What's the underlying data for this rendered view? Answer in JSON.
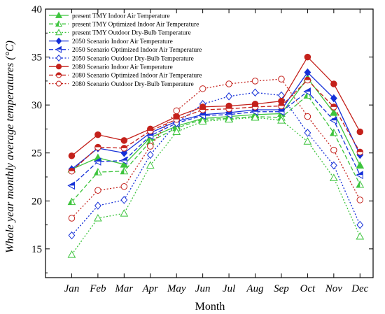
{
  "chart_data": {
    "type": "line",
    "xlabel": "Month",
    "ylabel": "Whole year monthly average temperatures (°C)",
    "categories": [
      "Jan",
      "Feb",
      "Mar",
      "Apr",
      "May",
      "Jun",
      "Jul",
      "Aug",
      "Sep",
      "Oct",
      "Nov",
      "Dec"
    ],
    "ylim": [
      12,
      40
    ],
    "yticks": [
      15,
      20,
      25,
      30,
      35,
      40
    ],
    "grid": false,
    "legend_position": "top-left",
    "series": [
      {
        "name": "present TMY Indoor Air Temperature",
        "color": "#3dc43d",
        "marker": "triangle",
        "fill": true,
        "dash": "solid",
        "values": [
          23.3,
          24.5,
          23.8,
          26.6,
          27.8,
          28.6,
          28.8,
          29.0,
          29.1,
          32.8,
          29.2,
          23.7
        ]
      },
      {
        "name": "present TMY Optimized Indoor Air Temperature",
        "color": "#3dc43d",
        "marker": "triangle-half",
        "fill": true,
        "dash": "dashed",
        "values": [
          19.9,
          23.0,
          23.1,
          26.2,
          27.6,
          28.5,
          28.6,
          28.8,
          28.7,
          31.0,
          27.1,
          21.7
        ]
      },
      {
        "name": "present TMY Outdoor Dry-Bulb Temperature",
        "color": "#3dc43d",
        "marker": "triangle",
        "fill": false,
        "dash": "dotted",
        "values": [
          14.4,
          18.2,
          18.7,
          23.7,
          27.2,
          28.3,
          28.5,
          28.7,
          28.4,
          26.2,
          22.4,
          16.3
        ]
      },
      {
        "name": "2050 Scenario Indoor Air Temperature",
        "color": "#1530d8",
        "marker": "diamond",
        "fill": true,
        "dash": "solid",
        "values": [
          23.3,
          25.5,
          25.0,
          27.1,
          28.3,
          29.0,
          29.2,
          29.5,
          29.5,
          33.4,
          30.7,
          24.8
        ]
      },
      {
        "name": "2050 Scenario Optimized  Indoor Air Temperature",
        "color": "#1530d8",
        "marker": "triangle-left",
        "fill": true,
        "dash": "dashed",
        "values": [
          21.6,
          24.1,
          24.2,
          26.8,
          28.1,
          28.9,
          29.0,
          29.3,
          29.3,
          31.4,
          28.4,
          22.7
        ]
      },
      {
        "name": "2050 Scenario Outdoor Dry-Bulb Temperature",
        "color": "#1530d8",
        "marker": "diamond",
        "fill": false,
        "dash": "dotted",
        "values": [
          16.4,
          19.5,
          20.1,
          24.8,
          28.1,
          30.1,
          30.9,
          31.3,
          31.0,
          27.1,
          23.7,
          17.5
        ]
      },
      {
        "name": "2080 Scenario Indoor Air Temperature",
        "color": "#c4211b",
        "marker": "circle",
        "fill": true,
        "dash": "solid",
        "values": [
          24.7,
          26.9,
          26.3,
          27.5,
          28.8,
          29.8,
          29.9,
          30.1,
          30.4,
          35.0,
          32.2,
          27.2
        ]
      },
      {
        "name": "2080 Scenario Optimized  Indoor Air Temperature",
        "color": "#c4211b",
        "marker": "circle-half",
        "fill": true,
        "dash": "dashed",
        "values": [
          23.1,
          25.6,
          25.5,
          27.3,
          28.5,
          29.5,
          29.6,
          29.8,
          29.9,
          32.6,
          29.8,
          25.1
        ]
      },
      {
        "name": "2080 Scenario Outdoor Dry-Bulb Temperature",
        "color": "#c4211b",
        "marker": "circle",
        "fill": false,
        "dash": "dotted",
        "values": [
          18.2,
          21.1,
          21.5,
          25.7,
          29.4,
          31.7,
          32.2,
          32.5,
          32.7,
          28.8,
          25.3,
          20.1
        ]
      }
    ]
  }
}
